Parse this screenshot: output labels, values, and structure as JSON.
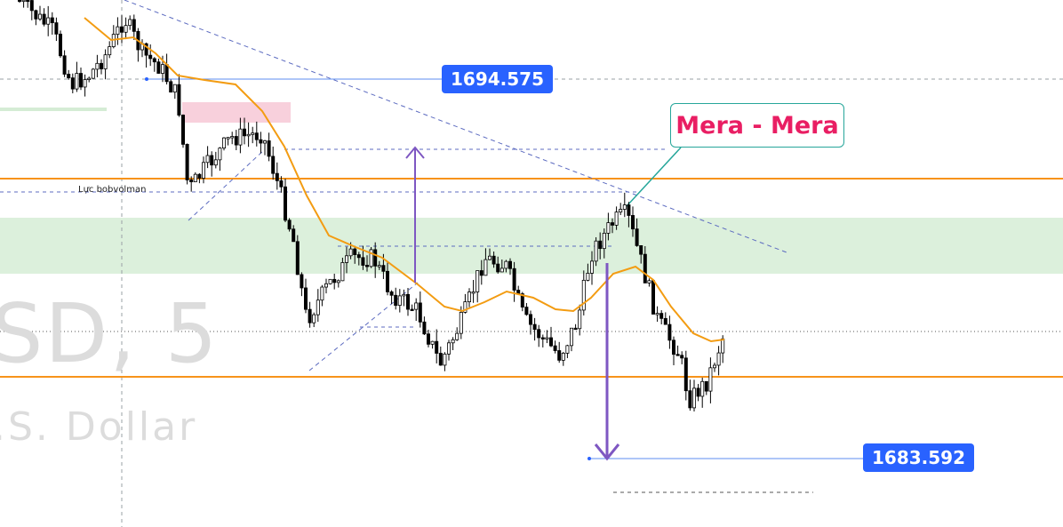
{
  "chart_data": {
    "type": "candlestick",
    "symbol_watermark": "SD, 5",
    "description_watermark": ".S. Dollar",
    "price_labels": [
      "1694.575",
      "1683.592"
    ],
    "price_top": 1694.575,
    "price_bottom": 1683.592,
    "annotation": "Mera - Mera",
    "level_label": "Lực bobvolman",
    "colors": {
      "candle": "#000000",
      "ma_line": "#f39c12",
      "resistance": "#f7931a",
      "zone_green": "#dcf0dc",
      "zone_red": "#f8d0dc",
      "arrow": "#7e57c2",
      "label_bg": "#2962ff",
      "annotation_text": "#e91e63",
      "annotation_border": "#26a69a"
    },
    "grid": false
  }
}
